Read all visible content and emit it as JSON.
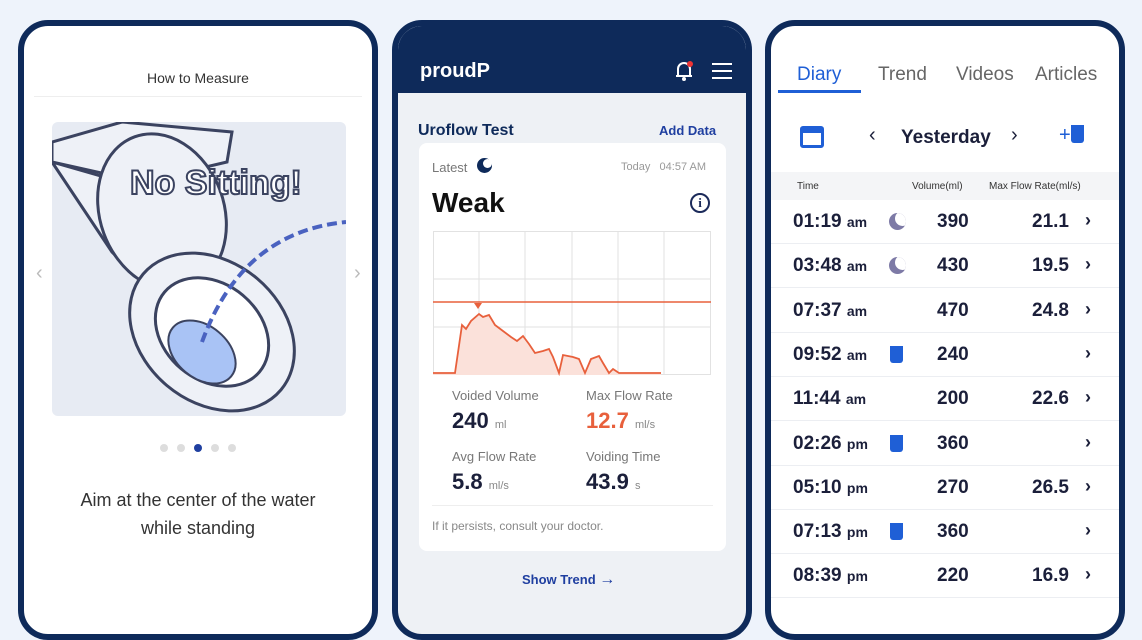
{
  "left_screen": {
    "title": "How to Measure",
    "illustration_text": "No Sitting!",
    "caption_line1": "Aim at the center of the water",
    "caption_line2": "while standing",
    "carousel_active_index": 3,
    "carousel_count": 5
  },
  "middle_screen": {
    "app_name": "proudP",
    "section_title": "Uroflow Test",
    "add_data": "Add Data",
    "latest_label": "Latest",
    "date": "Today",
    "time": "04:57 AM",
    "status": "Weak",
    "stats": {
      "voided_volume_label": "Voided Volume",
      "voided_volume": "240",
      "voided_volume_unit": "ml",
      "max_flow_label": "Max Flow Rate",
      "max_flow": "12.7",
      "max_flow_unit": "ml/s",
      "avg_flow_label": "Avg Flow Rate",
      "avg_flow": "5.8",
      "avg_flow_unit": "ml/s",
      "voiding_time_label": "Voiding Time",
      "voiding_time": "43.9",
      "voiding_time_unit": "s"
    },
    "note": "If it persists, consult your doctor.",
    "show_trend": "Show Trend",
    "colors": {
      "accent": "#e8603c",
      "brand": "#0e2a5a",
      "link": "#1f3fa0"
    }
  },
  "right_screen": {
    "tabs": [
      "Diary",
      "Trend",
      "Videos",
      "Articles"
    ],
    "active_tab": "Diary",
    "date_label": "Yesterday",
    "columns": [
      "Time",
      "Volume(ml)",
      "Max Flow Rate(ml/s)"
    ],
    "rows": [
      {
        "time": "01:19",
        "ampm": "am",
        "icon": "moon",
        "volume": "390",
        "flow": "21.1"
      },
      {
        "time": "03:48",
        "ampm": "am",
        "icon": "moon",
        "volume": "430",
        "flow": "19.5"
      },
      {
        "time": "07:37",
        "ampm": "am",
        "icon": "",
        "volume": "470",
        "flow": "24.8"
      },
      {
        "time": "09:52",
        "ampm": "am",
        "icon": "cup",
        "volume": "240",
        "flow": ""
      },
      {
        "time": "11:44",
        "ampm": "am",
        "icon": "",
        "volume": "200",
        "flow": "22.6"
      },
      {
        "time": "02:26",
        "ampm": "pm",
        "icon": "cup",
        "volume": "360",
        "flow": ""
      },
      {
        "time": "05:10",
        "ampm": "pm",
        "icon": "",
        "volume": "270",
        "flow": "26.5"
      },
      {
        "time": "07:13",
        "ampm": "pm",
        "icon": "cup",
        "volume": "360",
        "flow": ""
      },
      {
        "time": "08:39",
        "ampm": "pm",
        "icon": "",
        "volume": "220",
        "flow": "16.9"
      }
    ]
  }
}
